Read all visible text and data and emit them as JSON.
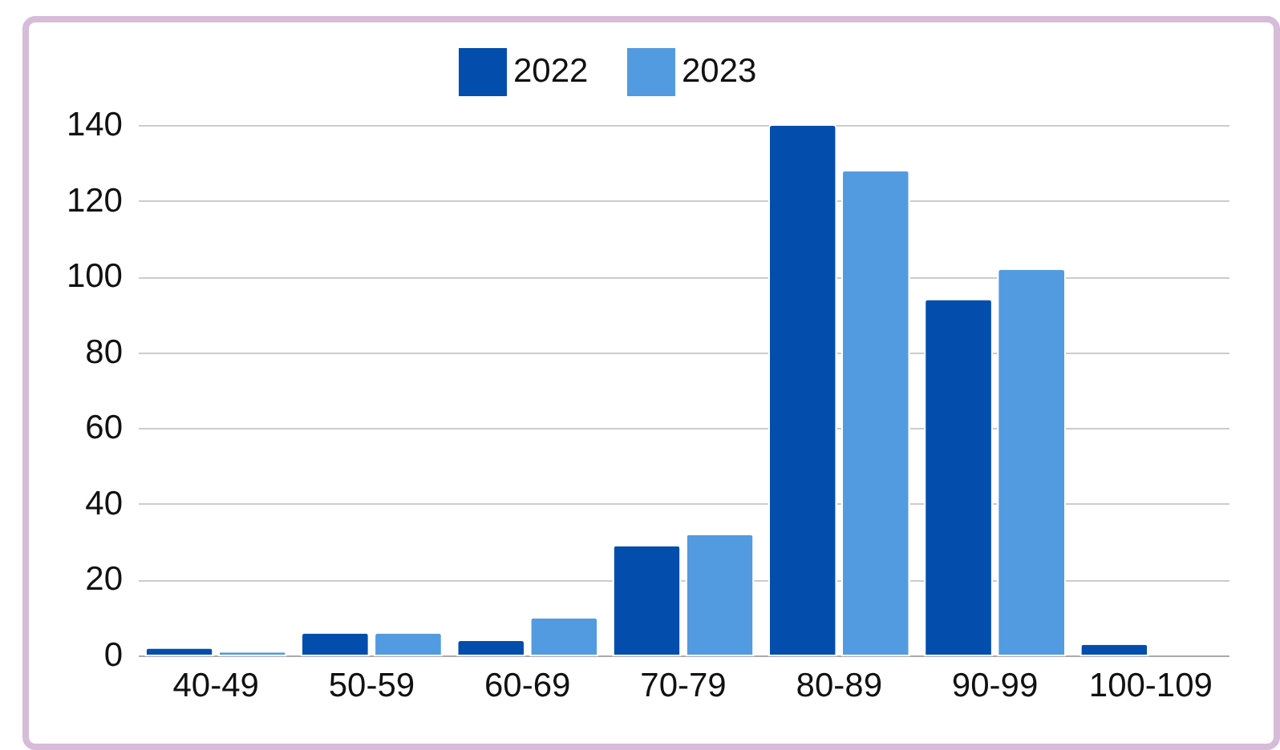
{
  "chart_data": {
    "type": "bar",
    "categories": [
      "40-49",
      "50-59",
      "60-69",
      "70-79",
      "80-89",
      "90-99",
      "100-109"
    ],
    "series": [
      {
        "name": "2022",
        "color": "#034ead",
        "values": [
          2,
          6,
          4,
          29,
          140,
          94,
          3
        ]
      },
      {
        "name": "2023",
        "color": "#539be0",
        "values": [
          1,
          6,
          10,
          32,
          128,
          102,
          null
        ]
      }
    ],
    "ylim": [
      0,
      140
    ],
    "yticks": [
      0,
      20,
      40,
      60,
      80,
      100,
      120,
      140
    ],
    "grid": "y",
    "legend": "top"
  }
}
